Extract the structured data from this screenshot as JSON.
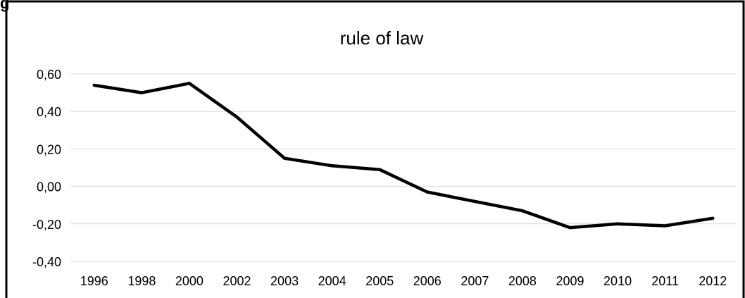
{
  "chart_data": {
    "type": "line",
    "title": "rule of law",
    "xlabel": "",
    "ylabel": "",
    "categories": [
      "1996",
      "1998",
      "2000",
      "2002",
      "2003",
      "2004",
      "2005",
      "2006",
      "2007",
      "2008",
      "2009",
      "2010",
      "2011",
      "2012"
    ],
    "series": [
      {
        "values": [
          0.54,
          0.5,
          0.55,
          0.37,
          0.15,
          0.11,
          0.09,
          -0.03,
          -0.08,
          -0.13,
          -0.22,
          -0.2,
          -0.21,
          -0.17
        ]
      }
    ],
    "ylim": [
      -0.4,
      0.6
    ],
    "yticks": [
      "0,60",
      "0,40",
      "0,20",
      "0,00",
      "-0,20",
      "-0,40"
    ],
    "grid": true,
    "legend": "none",
    "line_color": "#000000",
    "grid_color": "#d9d9d9",
    "border_color": "#000000",
    "corner_mark": "g"
  }
}
